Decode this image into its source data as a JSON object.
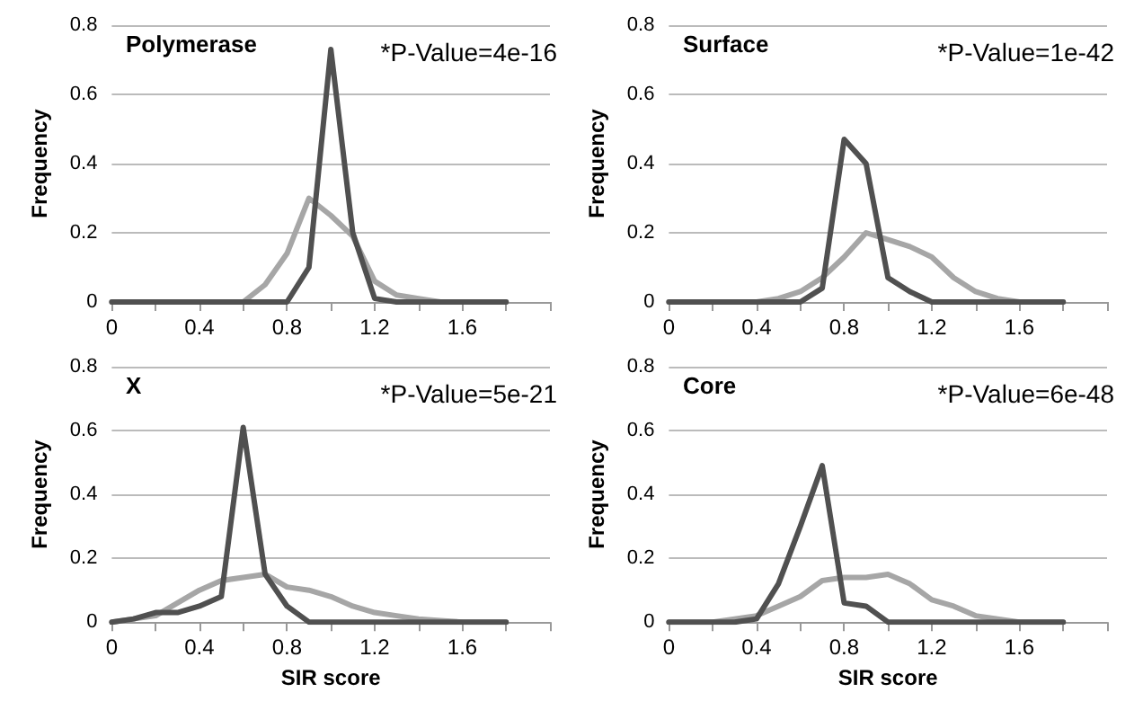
{
  "chart_data": [
    {
      "type": "line",
      "title": "Polymerase",
      "ylabel": "Frequency",
      "annotations": [
        "*P-Value=4e-16"
      ],
      "x": [
        0,
        0.1,
        0.2,
        0.3,
        0.4,
        0.5,
        0.6,
        0.7,
        0.8,
        0.9,
        1.0,
        1.1,
        1.2,
        1.3,
        1.4,
        1.5,
        1.6,
        1.7,
        1.8
      ],
      "xlim": [
        0,
        2
      ],
      "xticks": [
        0,
        {
          "value": 0.2,
          "label": null
        },
        0.4,
        {
          "value": 0.6,
          "label": null
        },
        0.8,
        {
          "value": 1.0,
          "label": null
        },
        1.2,
        {
          "value": 1.4,
          "label": null
        },
        1.6,
        {
          "value": 1.8,
          "label": null
        },
        {
          "value": 2.0,
          "label": null
        }
      ],
      "ylim": [
        0,
        0.8
      ],
      "yticks": [
        0,
        0.2,
        0.4,
        0.6,
        0.8
      ],
      "grid": "y",
      "marker": "none",
      "line_style": "solid",
      "series": [
        {
          "color": "#a6a6a6",
          "values": [
            0,
            0,
            0,
            0,
            0,
            0,
            0,
            0.05,
            0.14,
            0.3,
            0.25,
            0.19,
            0.06,
            0.02,
            0.01,
            0,
            0,
            0,
            0
          ]
        },
        {
          "color": "#505050",
          "values": [
            0,
            0,
            0,
            0,
            0,
            0,
            0,
            0,
            0,
            0.1,
            0.73,
            0.2,
            0.01,
            0,
            0,
            0,
            0,
            0,
            0
          ]
        }
      ]
    },
    {
      "type": "line",
      "title": "Surface",
      "ylabel": "Frequency",
      "annotations": [
        "*P-Value=1e-42"
      ],
      "x": [
        0,
        0.1,
        0.2,
        0.3,
        0.4,
        0.5,
        0.6,
        0.7,
        0.8,
        0.9,
        1.0,
        1.1,
        1.2,
        1.3,
        1.4,
        1.5,
        1.6,
        1.7,
        1.8
      ],
      "xlim": [
        0,
        2
      ],
      "xticks": [
        0,
        {
          "value": 0.2,
          "label": null
        },
        0.4,
        {
          "value": 0.6,
          "label": null
        },
        0.8,
        {
          "value": 1.0,
          "label": null
        },
        1.2,
        {
          "value": 1.4,
          "label": null
        },
        1.6,
        {
          "value": 1.8,
          "label": null
        },
        {
          "value": 2.0,
          "label": null
        }
      ],
      "ylim": [
        0,
        0.8
      ],
      "yticks": [
        0,
        0.2,
        0.4,
        0.6,
        0.8
      ],
      "grid": "y",
      "marker": "none",
      "line_style": "solid",
      "series": [
        {
          "color": "#a6a6a6",
          "values": [
            0,
            0,
            0,
            0,
            0,
            0.01,
            0.03,
            0.07,
            0.13,
            0.2,
            0.18,
            0.16,
            0.13,
            0.07,
            0.03,
            0.01,
            0,
            0,
            0
          ]
        },
        {
          "color": "#505050",
          "values": [
            0,
            0,
            0,
            0,
            0,
            0,
            0,
            0.04,
            0.47,
            0.4,
            0.07,
            0.03,
            0,
            0,
            0,
            0,
            0,
            0,
            0
          ]
        }
      ]
    },
    {
      "type": "line",
      "title": "X",
      "xlabel": "SIR score",
      "ylabel": "Frequency",
      "annotations": [
        "*P-Value=5e-21"
      ],
      "x": [
        0,
        0.1,
        0.2,
        0.3,
        0.4,
        0.5,
        0.6,
        0.7,
        0.8,
        0.9,
        1.0,
        1.1,
        1.2,
        1.3,
        1.4,
        1.5,
        1.6,
        1.7,
        1.8
      ],
      "xlim": [
        0,
        2
      ],
      "xticks": [
        0,
        {
          "value": 0.2,
          "label": null
        },
        0.4,
        {
          "value": 0.6,
          "label": null
        },
        0.8,
        {
          "value": 1.0,
          "label": null
        },
        1.2,
        {
          "value": 1.4,
          "label": null
        },
        1.6,
        {
          "value": 1.8,
          "label": null
        },
        {
          "value": 2.0,
          "label": null
        }
      ],
      "ylim": [
        0,
        0.8
      ],
      "yticks": [
        0,
        0.2,
        0.4,
        0.6,
        0.8
      ],
      "grid": "y",
      "marker": "none",
      "line_style": "solid",
      "series": [
        {
          "color": "#a6a6a6",
          "values": [
            0,
            0.01,
            0.02,
            0.06,
            0.1,
            0.13,
            0.14,
            0.15,
            0.11,
            0.1,
            0.08,
            0.05,
            0.03,
            0.02,
            0.01,
            0.005,
            0,
            0,
            0
          ]
        },
        {
          "color": "#505050",
          "values": [
            0,
            0.01,
            0.03,
            0.03,
            0.05,
            0.08,
            0.61,
            0.15,
            0.05,
            0,
            0,
            0,
            0,
            0,
            0,
            0,
            0,
            0,
            0
          ]
        }
      ]
    },
    {
      "type": "line",
      "title": "Core",
      "xlabel": "SIR score",
      "ylabel": "Frequency",
      "annotations": [
        "*P-Value=6e-48"
      ],
      "x": [
        0,
        0.1,
        0.2,
        0.3,
        0.4,
        0.5,
        0.6,
        0.7,
        0.8,
        0.9,
        1.0,
        1.1,
        1.2,
        1.3,
        1.4,
        1.5,
        1.6,
        1.7,
        1.8
      ],
      "xlim": [
        0,
        2
      ],
      "xticks": [
        0,
        {
          "value": 0.2,
          "label": null
        },
        0.4,
        {
          "value": 0.6,
          "label": null
        },
        0.8,
        {
          "value": 1.0,
          "label": null
        },
        1.2,
        {
          "value": 1.4,
          "label": null
        },
        1.6,
        {
          "value": 1.8,
          "label": null
        },
        {
          "value": 2.0,
          "label": null
        }
      ],
      "ylim": [
        0,
        0.8
      ],
      "yticks": [
        0,
        0.2,
        0.4,
        0.6,
        0.8
      ],
      "grid": "y",
      "marker": "none",
      "line_style": "solid",
      "series": [
        {
          "color": "#a6a6a6",
          "values": [
            0,
            0,
            0,
            0.01,
            0.02,
            0.05,
            0.08,
            0.13,
            0.14,
            0.14,
            0.15,
            0.12,
            0.07,
            0.05,
            0.02,
            0.01,
            0,
            0,
            0
          ]
        },
        {
          "color": "#505050",
          "values": [
            0,
            0,
            0,
            0,
            0.01,
            0.12,
            0.3,
            0.49,
            0.06,
            0.05,
            0,
            0,
            0,
            0,
            0,
            0,
            0,
            0,
            0
          ]
        }
      ]
    }
  ]
}
